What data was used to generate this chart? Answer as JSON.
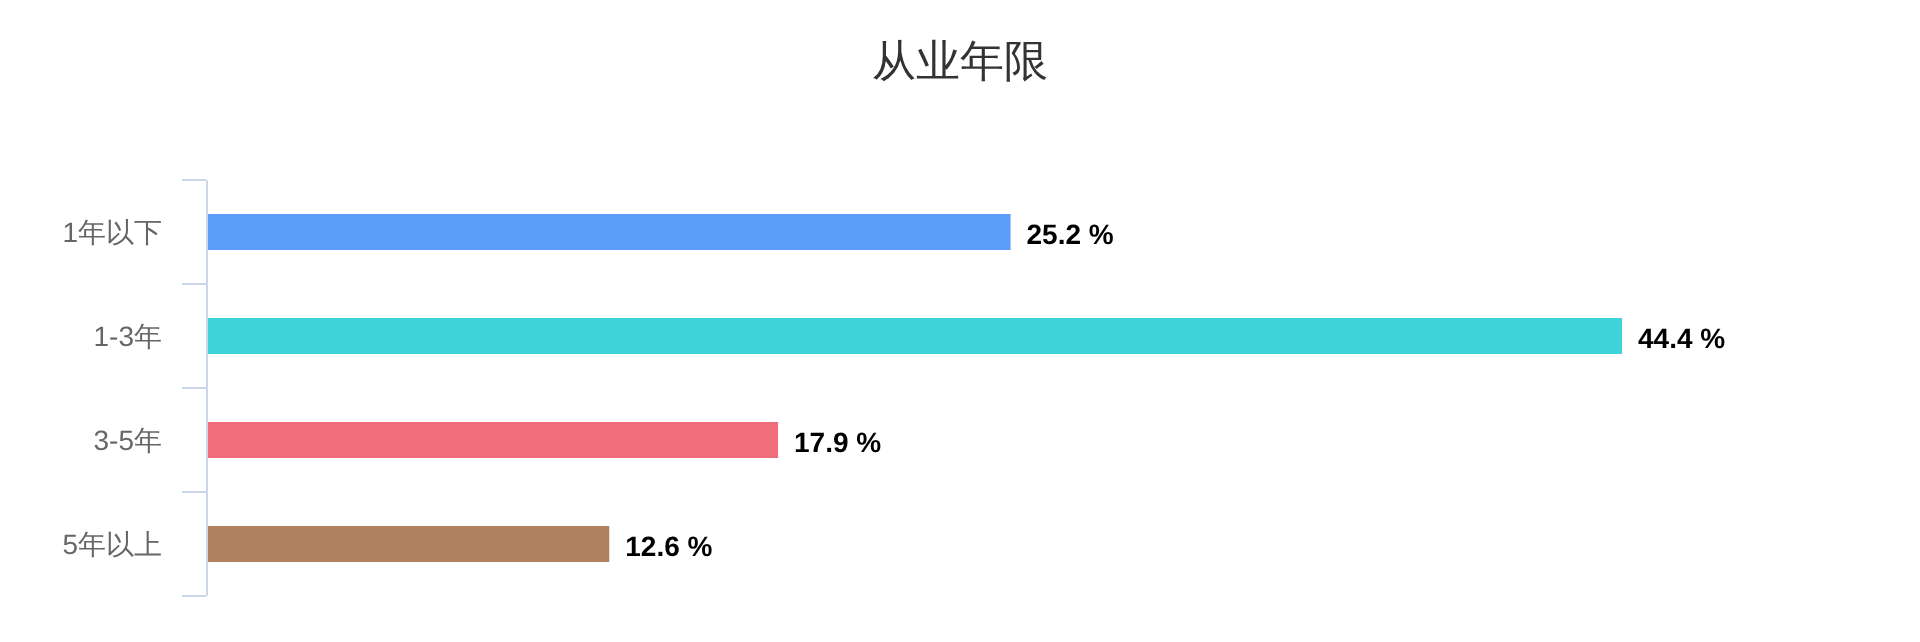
{
  "chart_data": {
    "type": "bar",
    "orientation": "horizontal",
    "title": "从业年限",
    "categories": [
      "1年以下",
      "1-3年",
      "3-5年",
      "5年以上"
    ],
    "values": [
      25.2,
      44.4,
      17.9,
      12.6
    ],
    "colors": [
      "#5a9cf8",
      "#3ed3d9",
      "#f26d7c",
      "#b0815f"
    ],
    "value_labels": [
      "25.2 %",
      "44.4 %",
      "17.9 %",
      "12.6 %"
    ]
  }
}
